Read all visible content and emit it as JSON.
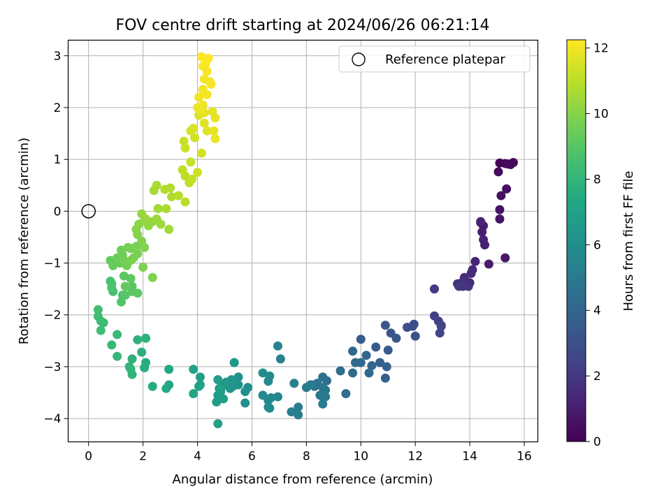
{
  "chart_data": {
    "type": "scatter",
    "title": "FOV centre drift starting at 2024/06/26 06:21:14",
    "xlabel": "Angular distance from reference (arcmin)",
    "ylabel": "Rotation from reference (arcmin)",
    "xlim": [
      -0.75,
      16.5
    ],
    "ylim": [
      -4.45,
      3.3
    ],
    "xticks": [
      0,
      2,
      4,
      6,
      8,
      10,
      12,
      14,
      16
    ],
    "yticks": [
      -4,
      -3,
      -2,
      -1,
      0,
      1,
      2,
      3
    ],
    "grid": true,
    "legend": {
      "placement": "top-right",
      "entries": [
        "Reference platepar"
      ]
    },
    "colorbar": {
      "label": "Hours from first FF file",
      "min": 0,
      "max": 12.25,
      "ticks": [
        0,
        2,
        4,
        6,
        8,
        10,
        12
      ],
      "colormap": "viridis"
    },
    "reference_point": {
      "x": 0,
      "y": 0,
      "label": "Reference platepar"
    },
    "points": [
      [
        15.1,
        0.93,
        0.0
      ],
      [
        15.3,
        0.92,
        0.1
      ],
      [
        15.5,
        0.9,
        0.15
      ],
      [
        15.6,
        0.94,
        0.2
      ],
      [
        15.4,
        0.91,
        0.25
      ],
      [
        15.05,
        0.76,
        0.35
      ],
      [
        15.35,
        0.43,
        0.45
      ],
      [
        15.15,
        0.3,
        0.5
      ],
      [
        15.1,
        0.03,
        0.6
      ],
      [
        15.1,
        -0.15,
        0.7
      ],
      [
        15.3,
        -0.9,
        0.8
      ],
      [
        14.7,
        -1.02,
        0.9
      ],
      [
        14.4,
        -0.22,
        1.0
      ],
      [
        14.5,
        -0.28,
        1.05
      ],
      [
        14.45,
        -0.4,
        1.1
      ],
      [
        14.5,
        -0.55,
        1.15
      ],
      [
        14.55,
        -0.65,
        1.2
      ],
      [
        14.4,
        -0.2,
        1.25
      ],
      [
        14.2,
        -0.97,
        1.3
      ],
      [
        14.1,
        -1.13,
        1.4
      ],
      [
        14.05,
        -1.2,
        1.45
      ],
      [
        14.0,
        -1.38,
        1.5
      ],
      [
        13.8,
        -1.28,
        1.55
      ],
      [
        13.9,
        -1.4,
        1.6
      ],
      [
        13.75,
        -1.45,
        1.7
      ],
      [
        13.55,
        -1.4,
        1.75
      ],
      [
        13.95,
        -1.45,
        1.8
      ],
      [
        13.7,
        -1.38,
        1.85
      ],
      [
        13.6,
        -1.45,
        1.9
      ],
      [
        12.7,
        -1.5,
        2.1
      ],
      [
        12.7,
        -2.02,
        2.2
      ],
      [
        12.85,
        -2.12,
        2.3
      ],
      [
        12.95,
        -2.22,
        2.4
      ],
      [
        12.9,
        -2.35,
        2.45
      ],
      [
        12.95,
        -2.2,
        2.5
      ],
      [
        11.95,
        -2.18,
        2.8
      ],
      [
        11.9,
        -2.22,
        2.9
      ],
      [
        11.7,
        -2.24,
        3.0
      ],
      [
        12.0,
        -2.41,
        3.05
      ],
      [
        11.1,
        -2.35,
        3.2
      ],
      [
        10.9,
        -2.2,
        3.3
      ],
      [
        11.3,
        -2.45,
        3.35
      ],
      [
        11.0,
        -2.68,
        3.5
      ],
      [
        10.55,
        -2.62,
        3.55
      ],
      [
        10.0,
        -2.47,
        3.6
      ],
      [
        10.7,
        -2.92,
        3.7
      ],
      [
        10.9,
        -3.22,
        3.8
      ],
      [
        10.95,
        -3.0,
        3.85
      ],
      [
        10.4,
        -2.98,
        3.9
      ],
      [
        10.2,
        -2.78,
        3.95
      ],
      [
        9.7,
        -2.7,
        4.0
      ],
      [
        10.0,
        -2.92,
        4.1
      ],
      [
        9.8,
        -2.92,
        4.15
      ],
      [
        10.3,
        -3.12,
        4.2
      ],
      [
        9.7,
        -3.12,
        4.25
      ],
      [
        9.25,
        -3.08,
        4.3
      ],
      [
        9.45,
        -3.52,
        4.4
      ],
      [
        8.75,
        -3.27,
        4.5
      ],
      [
        8.6,
        -3.2,
        4.55
      ],
      [
        8.4,
        -3.32,
        4.6
      ],
      [
        8.2,
        -3.35,
        4.65
      ],
      [
        8.3,
        -3.38,
        4.7
      ],
      [
        8.6,
        -3.4,
        4.75
      ],
      [
        8.7,
        -3.45,
        4.8
      ],
      [
        8.6,
        -3.58,
        4.85
      ],
      [
        8.5,
        -3.55,
        4.9
      ],
      [
        8.7,
        -3.58,
        4.95
      ],
      [
        8.6,
        -3.72,
        5.0
      ],
      [
        8.0,
        -3.4,
        5.05
      ],
      [
        8.15,
        -3.35,
        5.1
      ],
      [
        7.7,
        -3.78,
        5.2
      ],
      [
        7.7,
        -3.93,
        5.25
      ],
      [
        7.45,
        -3.87,
        5.3
      ],
      [
        7.55,
        -3.32,
        5.35
      ],
      [
        7.05,
        -2.85,
        5.4
      ],
      [
        6.95,
        -2.6,
        5.45
      ],
      [
        6.95,
        -3.58,
        5.5
      ],
      [
        6.7,
        -3.6,
        5.6
      ],
      [
        6.6,
        -3.65,
        5.65
      ],
      [
        6.65,
        -3.8,
        5.7
      ],
      [
        6.6,
        -3.78,
        5.72
      ],
      [
        6.4,
        -3.55,
        5.75
      ],
      [
        6.6,
        -3.28,
        5.8
      ],
      [
        6.65,
        -3.18,
        5.85
      ],
      [
        6.4,
        -3.12,
        5.9
      ],
      [
        5.85,
        -3.4,
        6.0
      ],
      [
        5.75,
        -3.48,
        6.05
      ],
      [
        5.75,
        -3.7,
        6.1
      ],
      [
        5.5,
        -3.2,
        6.15
      ],
      [
        5.4,
        -3.3,
        6.2
      ],
      [
        5.5,
        -3.35,
        6.25
      ],
      [
        5.3,
        -3.38,
        6.3
      ],
      [
        5.2,
        -3.42,
        6.35
      ],
      [
        5.25,
        -3.25,
        6.4
      ],
      [
        5.35,
        -2.92,
        6.45
      ],
      [
        5.05,
        -3.3,
        6.5
      ],
      [
        4.9,
        -3.38,
        6.55
      ],
      [
        4.85,
        -3.48,
        6.6
      ],
      [
        4.75,
        -3.55,
        6.65
      ],
      [
        4.7,
        -3.68,
        6.7
      ],
      [
        4.95,
        -3.62,
        6.75
      ],
      [
        4.75,
        -3.25,
        6.8
      ],
      [
        4.8,
        -3.42,
        6.85
      ],
      [
        4.75,
        -4.1,
        6.9
      ],
      [
        4.1,
        -3.2,
        6.95
      ],
      [
        4.1,
        -3.35,
        7.0
      ],
      [
        4.05,
        -3.38,
        7.05
      ],
      [
        3.85,
        -3.05,
        7.1
      ],
      [
        3.85,
        -3.52,
        7.15
      ],
      [
        2.95,
        -3.05,
        7.3
      ],
      [
        2.95,
        -3.35,
        7.35
      ],
      [
        2.85,
        -3.42,
        7.4
      ],
      [
        2.35,
        -3.38,
        7.5
      ],
      [
        2.1,
        -2.92,
        7.6
      ],
      [
        2.05,
        -3.02,
        7.65
      ],
      [
        1.95,
        -2.72,
        7.7
      ],
      [
        2.1,
        -2.45,
        7.8
      ],
      [
        1.8,
        -2.48,
        7.85
      ],
      [
        1.6,
        -2.85,
        7.9
      ],
      [
        1.6,
        -3.15,
        7.95
      ],
      [
        1.55,
        -3.05,
        8.0
      ],
      [
        1.5,
        -3.0,
        8.05
      ],
      [
        1.05,
        -2.8,
        8.1
      ],
      [
        0.85,
        -2.58,
        8.15
      ],
      [
        1.05,
        -2.38,
        8.2
      ],
      [
        0.55,
        -2.15,
        8.3
      ],
      [
        0.45,
        -2.12,
        8.35
      ],
      [
        0.45,
        -2.3,
        8.4
      ],
      [
        0.35,
        -2.03,
        8.45
      ],
      [
        0.35,
        -1.9,
        8.5
      ],
      [
        0.9,
        -1.55,
        8.6
      ],
      [
        0.85,
        -1.4,
        8.65
      ],
      [
        0.8,
        -1.35,
        8.7
      ],
      [
        0.85,
        -1.48,
        8.75
      ],
      [
        1.25,
        -1.62,
        8.8
      ],
      [
        1.2,
        -1.75,
        8.9
      ],
      [
        1.35,
        -1.62,
        8.95
      ],
      [
        1.6,
        -1.45,
        9.0
      ],
      [
        1.6,
        -1.55,
        9.05
      ],
      [
        1.8,
        -1.58,
        9.1
      ],
      [
        1.3,
        -1.25,
        9.15
      ],
      [
        1.55,
        -1.3,
        9.2
      ],
      [
        1.35,
        -1.45,
        9.25
      ],
      [
        0.8,
        -0.95,
        9.3
      ],
      [
        0.9,
        -1.05,
        9.35
      ],
      [
        1.15,
        -1.0,
        9.4
      ],
      [
        1.05,
        -0.9,
        9.45
      ],
      [
        1.25,
        -0.85,
        9.5
      ],
      [
        1.2,
        -0.75,
        9.55
      ],
      [
        1.3,
        -0.95,
        9.6
      ],
      [
        1.4,
        -1.05,
        9.62
      ],
      [
        1.45,
        -0.7,
        9.65
      ],
      [
        1.55,
        -0.72,
        9.7
      ],
      [
        1.65,
        -0.9,
        9.72
      ],
      [
        1.8,
        -0.82,
        9.75
      ],
      [
        1.75,
        -0.68,
        9.78
      ],
      [
        1.55,
        -0.95,
        9.8
      ],
      [
        2.0,
        -1.08,
        9.85
      ],
      [
        2.35,
        -1.28,
        9.9
      ],
      [
        2.05,
        -0.7,
        9.92
      ],
      [
        1.95,
        -0.58,
        9.95
      ],
      [
        1.8,
        -0.45,
        10.0
      ],
      [
        1.75,
        -0.35,
        10.05
      ],
      [
        1.85,
        -0.25,
        10.1
      ],
      [
        2.05,
        -0.18,
        10.15
      ],
      [
        2.2,
        -0.28,
        10.2
      ],
      [
        2.35,
        -0.2,
        10.25
      ],
      [
        1.95,
        -0.05,
        10.3
      ],
      [
        2.1,
        -0.15,
        10.35
      ],
      [
        2.5,
        -0.15,
        10.4
      ],
      [
        2.65,
        -0.25,
        10.45
      ],
      [
        2.95,
        -0.35,
        10.5
      ],
      [
        2.55,
        0.05,
        10.55
      ],
      [
        2.4,
        0.4,
        10.6
      ],
      [
        2.5,
        0.5,
        10.65
      ],
      [
        2.85,
        0.05,
        10.7
      ],
      [
        3.05,
        0.28,
        10.75
      ],
      [
        2.8,
        0.42,
        10.8
      ],
      [
        3.0,
        0.45,
        10.85
      ],
      [
        3.3,
        0.3,
        10.9
      ],
      [
        3.55,
        0.18,
        10.95
      ],
      [
        3.55,
        0.68,
        11.0
      ],
      [
        3.7,
        0.55,
        11.05
      ],
      [
        3.45,
        0.8,
        11.1
      ],
      [
        3.8,
        0.62,
        11.15
      ],
      [
        3.75,
        0.95,
        11.2
      ],
      [
        3.5,
        1.35,
        11.25
      ],
      [
        3.55,
        1.22,
        11.3
      ],
      [
        4.0,
        0.75,
        11.35
      ],
      [
        3.9,
        1.42,
        11.4
      ],
      [
        4.15,
        1.12,
        11.45
      ],
      [
        3.75,
        1.55,
        11.5
      ],
      [
        3.85,
        1.6,
        11.55
      ],
      [
        4.05,
        1.85,
        11.6
      ],
      [
        4.25,
        1.7,
        11.65
      ],
      [
        4.35,
        1.55,
        11.7
      ],
      [
        4.25,
        1.9,
        11.75
      ],
      [
        4.55,
        1.92,
        11.8
      ],
      [
        4.65,
        1.8,
        11.82
      ],
      [
        4.6,
        1.55,
        11.85
      ],
      [
        4.65,
        1.4,
        11.88
      ],
      [
        4.0,
        2.0,
        11.9
      ],
      [
        4.1,
        1.95,
        11.92
      ],
      [
        4.2,
        2.05,
        11.95
      ],
      [
        4.05,
        2.2,
        12.0
      ],
      [
        4.2,
        2.35,
        12.02
      ],
      [
        4.35,
        2.25,
        12.05
      ],
      [
        4.25,
        2.55,
        12.08
      ],
      [
        4.45,
        2.5,
        12.1
      ],
      [
        4.35,
        2.7,
        12.12
      ],
      [
        4.5,
        2.45,
        12.15
      ],
      [
        4.2,
        2.8,
        12.18
      ],
      [
        4.4,
        2.95,
        12.2
      ],
      [
        4.15,
        2.98,
        12.22
      ],
      [
        4.3,
        2.85,
        12.25
      ]
    ]
  }
}
